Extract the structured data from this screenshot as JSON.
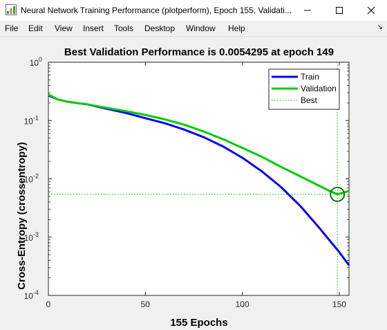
{
  "window": {
    "title": "Neural Network Training Performance (plotperform), Epoch 155, Validati...",
    "icon": "matlab-figure-icon"
  },
  "menu": {
    "items": [
      "File",
      "Edit",
      "View",
      "Insert",
      "Tools",
      "Desktop",
      "Window",
      "Help"
    ]
  },
  "chart_data": {
    "type": "line",
    "title": "Best Validation Performance is 0.0054295 at epoch 149",
    "xlabel": "155 Epochs",
    "ylabel": "Cross-Entropy  (crossentropy)",
    "xlim": [
      0,
      155
    ],
    "ylim": [
      0.0001,
      1
    ],
    "yscale": "log",
    "xticks": [
      "0",
      "50",
      "100",
      "150"
    ],
    "yticks": [
      {
        "base": "10",
        "exp": "0"
      },
      {
        "base": "10",
        "exp": "-1"
      },
      {
        "base": "10",
        "exp": "-2"
      },
      {
        "base": "10",
        "exp": "-3"
      },
      {
        "base": "10",
        "exp": "-4"
      }
    ],
    "grid": false,
    "legend_position": "top-right",
    "series": [
      {
        "name": "Train",
        "color": "#0000ff",
        "x": [
          0,
          5,
          10,
          20,
          30,
          40,
          50,
          60,
          70,
          80,
          90,
          100,
          110,
          120,
          130,
          140,
          150,
          155
        ],
        "y": [
          0.27,
          0.23,
          0.21,
          0.19,
          0.16,
          0.135,
          0.11,
          0.09,
          0.07,
          0.052,
          0.036,
          0.023,
          0.0135,
          0.0072,
          0.0034,
          0.0014,
          0.00055,
          0.00033
        ]
      },
      {
        "name": "Validation",
        "color": "#00cc00",
        "x": [
          0,
          5,
          10,
          20,
          30,
          40,
          50,
          60,
          70,
          80,
          90,
          100,
          110,
          120,
          130,
          140,
          145,
          149,
          152,
          155
        ],
        "y": [
          0.28,
          0.23,
          0.21,
          0.19,
          0.165,
          0.145,
          0.125,
          0.105,
          0.085,
          0.065,
          0.048,
          0.034,
          0.024,
          0.016,
          0.011,
          0.0075,
          0.0062,
          0.0054295,
          0.0058,
          0.0062
        ]
      }
    ],
    "best": {
      "name": "Best",
      "epoch": 149,
      "value": 0.0054295,
      "color": "#00aa00"
    }
  }
}
